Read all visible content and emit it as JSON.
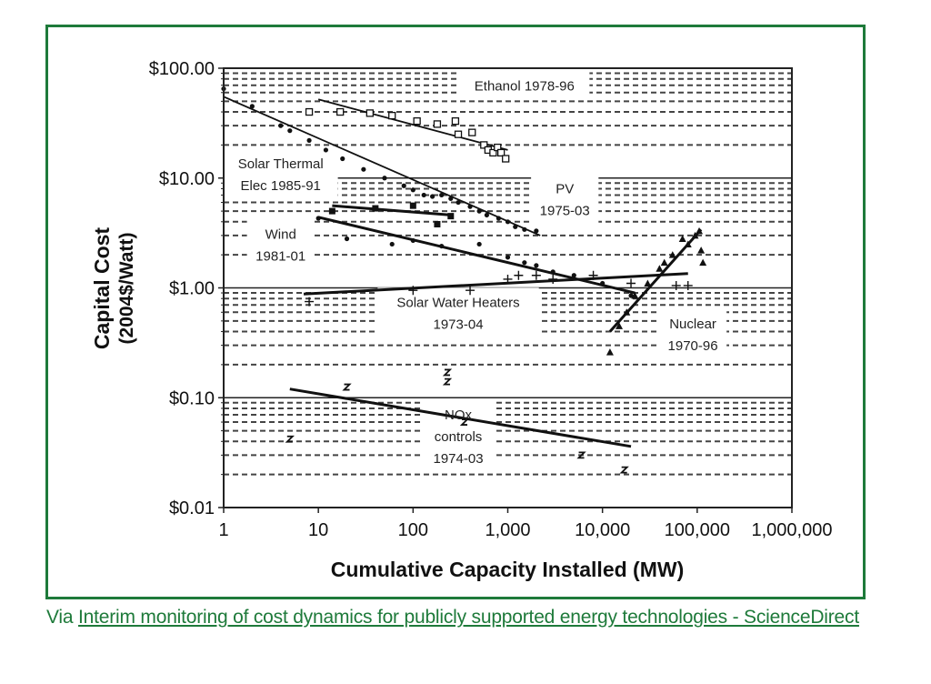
{
  "caption": {
    "prefix": "Via",
    "link_text": "Interim monitoring of cost dynamics for publicly supported energy technologies - ScienceDirect"
  },
  "colors": {
    "frame": "#1e7a3a",
    "caption": "#1e7a3a",
    "ink": "#111111",
    "grid": "#333333"
  },
  "chart_data": {
    "type": "scatter",
    "title": "",
    "xlabel": "Cumulative Capacity Installed (MW)",
    "ylabel": "Capital Cost",
    "ylabel2": "(2004$/Watt)",
    "xscale": "log",
    "yscale": "log",
    "xlim": [
      1,
      1000000
    ],
    "ylim": [
      0.01,
      100
    ],
    "xticks": [
      1,
      10,
      100,
      1000,
      10000,
      100000,
      1000000
    ],
    "xtick_labels": [
      "1",
      "10",
      "100",
      "1,000",
      "10,000",
      "100,000",
      "1,000,000"
    ],
    "yticks": [
      0.01,
      0.1,
      1,
      10,
      100
    ],
    "ytick_labels": [
      "$0.01",
      "$0.10",
      "$1.00",
      "$10.00",
      "$100.00"
    ],
    "grid": "dashed minor lines at 2-9 x each decade; solid at decades",
    "legend": "none (inline labels)",
    "series": [
      {
        "name": "Ethanol 1978-96",
        "label_lines": [
          "Ethanol 1978-96"
        ],
        "label_at": [
          1500,
          70
        ],
        "marker": "square-open",
        "x": [
          8,
          17,
          35,
          60,
          110,
          180,
          280,
          300,
          420,
          560,
          620,
          700,
          780,
          850,
          950
        ],
        "y": [
          40,
          40,
          39,
          37,
          33,
          31,
          33,
          25,
          26,
          20,
          18,
          17,
          19,
          17,
          15
        ],
        "fit": {
          "x": [
            10,
            1000
          ],
          "y": [
            52,
            18
          ]
        }
      },
      {
        "name": "PV 1975-03",
        "label_lines": [
          "PV",
          "1975-03"
        ],
        "label_at": [
          4000,
          6.5
        ],
        "marker": "dot",
        "x": [
          1,
          2,
          4,
          5,
          8,
          12,
          18,
          30,
          50,
          80,
          100,
          130,
          160,
          200,
          250,
          300,
          400,
          500,
          600,
          800,
          1000,
          1200,
          1500,
          2000
        ],
        "y": [
          65,
          45,
          30,
          27,
          22,
          18,
          15,
          12,
          10,
          8.5,
          7.8,
          7,
          6.8,
          7,
          6.5,
          6,
          5.5,
          5,
          4.6,
          4.3,
          4,
          3.6,
          3.4,
          3.3
        ],
        "fit": {
          "x": [
            1,
            2200
          ],
          "y": [
            55,
            3.0
          ]
        }
      },
      {
        "name": "Solar Thermal Elec 1985-91",
        "label_lines": [
          "Solar Thermal",
          "Elec 1985-91"
        ],
        "label_at": [
          4,
          11
        ],
        "marker": "square-filled",
        "x": [
          14,
          40,
          100,
          180,
          250
        ],
        "y": [
          5.0,
          5.3,
          5.6,
          3.8,
          4.5
        ],
        "fit": {
          "x": [
            14,
            260
          ],
          "y": [
            5.6,
            4.6
          ]
        }
      },
      {
        "name": "Wind 1981-01",
        "label_lines": [
          "Wind",
          "1981-01"
        ],
        "label_at": [
          4,
          2.5
        ],
        "marker": "dot",
        "x": [
          10,
          20,
          60,
          100,
          200,
          500,
          1000,
          1500,
          2000,
          3000,
          5000,
          10000,
          20000
        ],
        "y": [
          4.3,
          2.8,
          2.5,
          2.7,
          2.4,
          2.5,
          1.9,
          1.7,
          1.6,
          1.4,
          1.3,
          1.1,
          0.85
        ],
        "fit": {
          "x": [
            10,
            22000
          ],
          "y": [
            4.4,
            0.9
          ]
        }
      },
      {
        "name": "Solar Water Heaters 1973-04",
        "label_lines": [
          "Solar Water Heaters",
          "1973-04"
        ],
        "label_at": [
          300,
          0.6
        ],
        "marker": "plus",
        "x": [
          8,
          100,
          400,
          1000,
          1300,
          2000,
          3000,
          8000,
          20000,
          60000,
          80000
        ],
        "y": [
          0.75,
          0.95,
          0.95,
          1.2,
          1.3,
          1.3,
          1.2,
          1.3,
          1.1,
          1.05,
          1.05
        ],
        "fit": {
          "x": [
            7,
            80000
          ],
          "y": [
            0.88,
            1.35
          ]
        }
      },
      {
        "name": "Nuclear 1970-96",
        "label_lines": [
          "Nuclear",
          "1970-96"
        ],
        "label_at": [
          90000,
          0.38
        ],
        "marker": "triangle",
        "x": [
          12000,
          15000,
          18000,
          22000,
          30000,
          40000,
          45000,
          55000,
          70000,
          80000,
          95000,
          105000,
          110000,
          115000
        ],
        "y": [
          0.26,
          0.45,
          0.6,
          0.85,
          1.1,
          1.5,
          1.7,
          2.0,
          2.8,
          2.5,
          3.0,
          3.3,
          2.2,
          1.7
        ],
        "fit": {
          "x": [
            12000,
            110000
          ],
          "y": [
            0.4,
            3.4
          ]
        }
      },
      {
        "name": "NOx controls 1974-03",
        "label_lines": [
          "NOx",
          "controls",
          "1974-03"
        ],
        "label_at": [
          300,
          0.045
        ],
        "marker": "x",
        "x": [
          5,
          20,
          230,
          230,
          350,
          6000,
          17000
        ],
        "y": [
          0.042,
          0.125,
          0.17,
          0.14,
          0.06,
          0.03,
          0.022
        ],
        "fit": {
          "x": [
            5,
            20000
          ],
          "y": [
            0.12,
            0.036
          ]
        }
      }
    ]
  }
}
